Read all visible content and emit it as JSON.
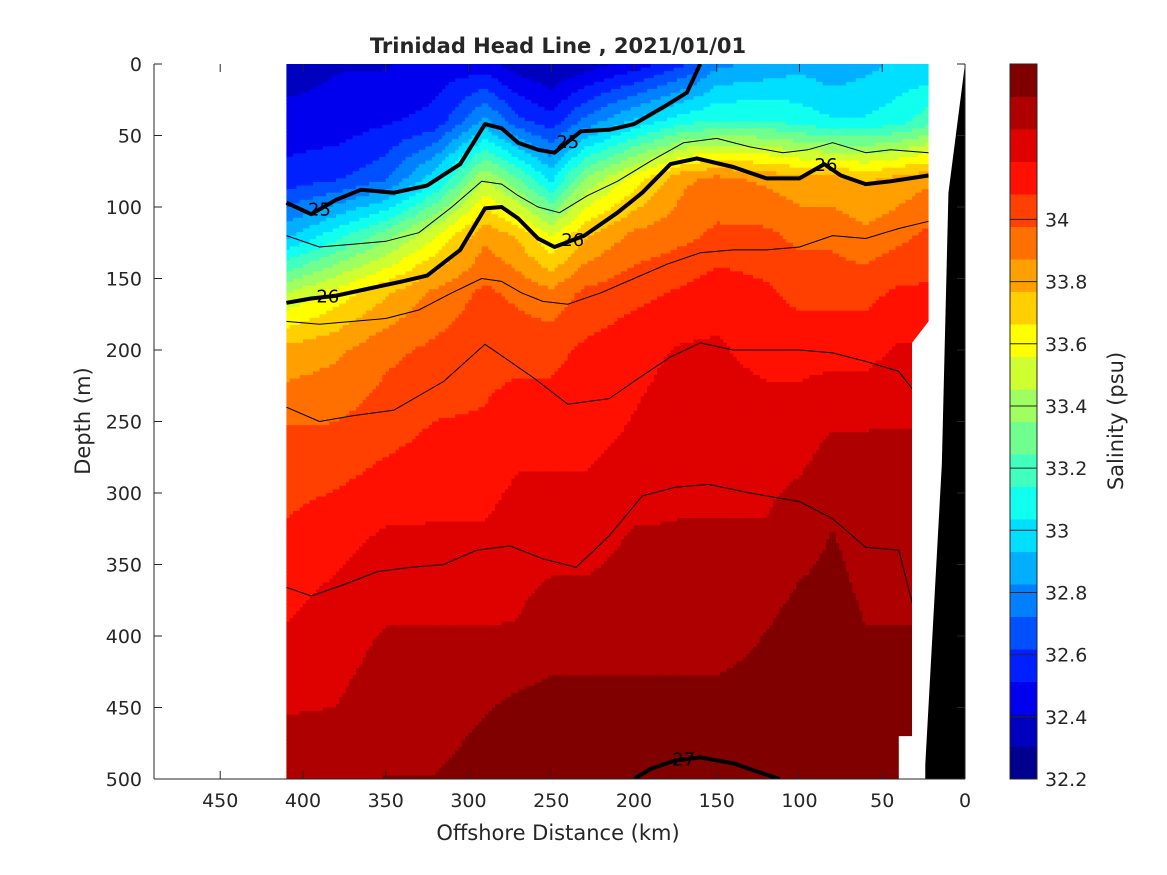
{
  "chart_data": {
    "type": "heatmap",
    "title": "Trinidad Head Line , 2021/01/01",
    "xlabel": "Offshore Distance (km)",
    "ylabel": "Depth (m)",
    "xlim": [
      490,
      0
    ],
    "ylim": [
      0,
      500
    ],
    "x_ticks": [
      "450",
      "400",
      "350",
      "300",
      "250",
      "200",
      "150",
      "100",
      "50",
      "0"
    ],
    "y_ticks": [
      "0",
      "50",
      "100",
      "150",
      "200",
      "250",
      "300",
      "350",
      "400",
      "450",
      "500"
    ],
    "colorbar": {
      "label": "Salinity (psu)",
      "range": [
        32.2,
        34.5
      ],
      "ticks": [
        "32.2",
        "32.4",
        "32.6",
        "32.8",
        "33",
        "33.2",
        "33.4",
        "33.6",
        "33.8",
        "34"
      ],
      "colors": [
        "#00008f",
        "#0000bf",
        "#0000ef",
        "#0020ff",
        "#0050ff",
        "#0080ff",
        "#00afff",
        "#00dfff",
        "#10ffef",
        "#40ffbf",
        "#70ff8f",
        "#9fff60",
        "#cfff30",
        "#ffff00",
        "#ffcf00",
        "#ff9f00",
        "#ff7000",
        "#ff4000",
        "#ff1000",
        "#df0000",
        "#af0000",
        "#800000"
      ]
    },
    "data_extent_km": [
      410,
      22
    ],
    "salinity_by_depth": {
      "x_km": [
        410,
        380,
        350,
        320,
        290,
        270,
        250,
        230,
        200,
        170,
        150,
        120,
        100,
        80,
        60,
        40,
        22
      ],
      "rows": [
        {
          "depth": 0,
          "values": [
            32.35,
            32.4,
            32.4,
            32.45,
            32.45,
            32.35,
            32.3,
            32.35,
            32.45,
            32.6,
            32.8,
            32.85,
            32.9,
            32.85,
            32.9,
            32.95,
            32.95
          ]
        },
        {
          "depth": 40,
          "values": [
            32.45,
            32.45,
            32.5,
            32.55,
            32.85,
            32.65,
            32.55,
            32.75,
            32.95,
            33.1,
            33.15,
            33.15,
            33.1,
            33.05,
            33.05,
            33.1,
            33.2
          ]
        },
        {
          "depth": 80,
          "values": [
            32.55,
            32.6,
            32.7,
            33.0,
            33.45,
            33.25,
            33.0,
            33.35,
            33.6,
            33.85,
            33.9,
            33.85,
            33.8,
            33.8,
            33.75,
            33.8,
            33.85
          ]
        },
        {
          "depth": 120,
          "values": [
            32.9,
            33.1,
            33.3,
            33.55,
            33.85,
            33.75,
            33.55,
            33.75,
            33.9,
            33.95,
            34.0,
            34.0,
            33.95,
            33.95,
            33.9,
            33.95,
            34.0
          ]
        },
        {
          "depth": 160,
          "values": [
            33.45,
            33.6,
            33.75,
            33.9,
            34.0,
            33.95,
            33.9,
            34.0,
            34.05,
            34.1,
            34.15,
            34.1,
            34.05,
            34.05,
            34.05,
            34.1,
            34.1
          ]
        },
        {
          "depth": 200,
          "values": [
            33.8,
            33.85,
            33.95,
            34.0,
            34.05,
            34.05,
            34.05,
            34.1,
            34.15,
            34.2,
            34.2,
            34.15,
            34.15,
            34.15,
            34.15,
            34.2,
            34.2
          ]
        },
        {
          "depth": 260,
          "values": [
            34.0,
            34.0,
            34.05,
            34.1,
            34.1,
            34.15,
            34.15,
            34.15,
            34.2,
            34.25,
            34.25,
            34.25,
            34.25,
            34.3,
            34.3,
            34.3,
            34.3
          ]
        },
        {
          "depth": 330,
          "values": [
            34.1,
            34.15,
            34.2,
            34.2,
            34.2,
            34.25,
            34.25,
            34.25,
            34.3,
            34.3,
            34.3,
            34.3,
            34.35,
            34.4,
            34.35,
            34.35,
            34.35
          ]
        },
        {
          "depth": 400,
          "values": [
            34.2,
            34.25,
            34.3,
            34.3,
            34.3,
            34.3,
            34.35,
            34.35,
            34.35,
            34.35,
            34.35,
            34.4,
            34.45,
            34.45,
            34.4,
            34.4,
            34.4
          ]
        },
        {
          "depth": 460,
          "values": [
            34.3,
            34.3,
            34.35,
            34.35,
            34.4,
            34.45,
            34.45,
            34.45,
            34.45,
            34.45,
            34.45,
            34.45,
            34.5,
            34.5,
            34.45,
            34.45,
            34.45
          ]
        },
        {
          "depth": 500,
          "values": [
            34.35,
            34.35,
            34.4,
            34.4,
            34.45,
            34.5,
            34.5,
            34.5,
            34.5,
            34.5,
            34.5,
            34.5,
            34.5,
            34.5,
            34.5,
            34.5,
            34.5
          ]
        }
      ]
    },
    "density_contours": [
      {
        "level": "25",
        "bold": true,
        "label_at_km": [
          390,
          240
        ],
        "points": [
          [
            410,
            97
          ],
          [
            395,
            105
          ],
          [
            380,
            95
          ],
          [
            365,
            88
          ],
          [
            345,
            90
          ],
          [
            325,
            85
          ],
          [
            305,
            70
          ],
          [
            290,
            42
          ],
          [
            280,
            45
          ],
          [
            270,
            55
          ],
          [
            258,
            60
          ],
          [
            248,
            62
          ],
          [
            232,
            47
          ],
          [
            215,
            46
          ],
          [
            200,
            42
          ],
          [
            182,
            30
          ],
          [
            168,
            20
          ],
          [
            160,
            0
          ]
        ]
      },
      {
        "level": "26",
        "bold": true,
        "label_at_km": [
          385,
          237,
          84
        ],
        "points": [
          [
            410,
            167
          ],
          [
            395,
            164
          ],
          [
            380,
            162
          ],
          [
            360,
            157
          ],
          [
            340,
            152
          ],
          [
            325,
            148
          ],
          [
            305,
            130
          ],
          [
            290,
            101
          ],
          [
            280,
            100
          ],
          [
            270,
            108
          ],
          [
            258,
            122
          ],
          [
            248,
            128
          ],
          [
            230,
            120
          ],
          [
            210,
            104
          ],
          [
            195,
            90
          ],
          [
            178,
            70
          ],
          [
            162,
            66
          ],
          [
            140,
            72
          ],
          [
            120,
            80
          ],
          [
            100,
            80
          ],
          [
            85,
            70
          ],
          [
            75,
            78
          ],
          [
            60,
            84
          ],
          [
            45,
            82
          ],
          [
            22,
            78
          ]
        ]
      },
      {
        "level": "27",
        "bold": true,
        "label_at_km": [
          170
        ],
        "points": [
          [
            200,
            500
          ],
          [
            190,
            493
          ],
          [
            175,
            487
          ],
          [
            160,
            485
          ],
          [
            140,
            489
          ],
          [
            125,
            495
          ],
          [
            112,
            500
          ]
        ]
      },
      {
        "level": "",
        "bold": false,
        "label_at_km": [],
        "points": [
          [
            410,
            240
          ],
          [
            390,
            250
          ],
          [
            370,
            246
          ],
          [
            345,
            242
          ],
          [
            315,
            222
          ],
          [
            290,
            196
          ],
          [
            280,
            204
          ],
          [
            260,
            220
          ],
          [
            240,
            238
          ],
          [
            215,
            234
          ],
          [
            195,
            218
          ],
          [
            178,
            205
          ],
          [
            160,
            195
          ],
          [
            140,
            200
          ],
          [
            120,
            200
          ],
          [
            100,
            200
          ],
          [
            80,
            202
          ],
          [
            60,
            208
          ],
          [
            40,
            215
          ],
          [
            30,
            230
          ]
        ]
      },
      {
        "level": "",
        "bold": false,
        "label_at_km": [],
        "points": [
          [
            410,
            366
          ],
          [
            395,
            372
          ],
          [
            375,
            364
          ],
          [
            355,
            355
          ],
          [
            335,
            352
          ],
          [
            315,
            350
          ],
          [
            295,
            340
          ],
          [
            275,
            337
          ],
          [
            255,
            346
          ],
          [
            235,
            352
          ],
          [
            215,
            330
          ],
          [
            195,
            302
          ],
          [
            175,
            296
          ],
          [
            155,
            294
          ],
          [
            130,
            300
          ],
          [
            100,
            306
          ],
          [
            80,
            318
          ],
          [
            60,
            338
          ],
          [
            40,
            340
          ],
          [
            30,
            385
          ]
        ]
      },
      {
        "level": "",
        "bold": false,
        "label_at_km": [],
        "points": [
          [
            410,
            120
          ],
          [
            390,
            128
          ],
          [
            370,
            126
          ],
          [
            350,
            124
          ],
          [
            330,
            118
          ],
          [
            310,
            100
          ],
          [
            292,
            82
          ],
          [
            280,
            84
          ],
          [
            270,
            92
          ],
          [
            258,
            100
          ],
          [
            245,
            104
          ],
          [
            228,
            92
          ],
          [
            210,
            82
          ],
          [
            190,
            68
          ],
          [
            170,
            55
          ],
          [
            150,
            52
          ],
          [
            130,
            58
          ],
          [
            110,
            62
          ],
          [
            95,
            60
          ],
          [
            80,
            55
          ],
          [
            60,
            62
          ],
          [
            45,
            60
          ],
          [
            22,
            62
          ]
        ]
      },
      {
        "level": "",
        "bold": false,
        "label_at_km": [],
        "points": [
          [
            410,
            180
          ],
          [
            390,
            182
          ],
          [
            370,
            180
          ],
          [
            350,
            178
          ],
          [
            330,
            172
          ],
          [
            310,
            160
          ],
          [
            292,
            150
          ],
          [
            280,
            152
          ],
          [
            268,
            160
          ],
          [
            255,
            166
          ],
          [
            240,
            168
          ],
          [
            220,
            160
          ],
          [
            200,
            150
          ],
          [
            180,
            140
          ],
          [
            160,
            132
          ],
          [
            140,
            130
          ],
          [
            120,
            130
          ],
          [
            100,
            128
          ],
          [
            80,
            120
          ],
          [
            60,
            122
          ],
          [
            40,
            115
          ],
          [
            22,
            110
          ]
        ]
      }
    ],
    "bathymetry_wedge_km": [
      [
        22,
        0
      ],
      [
        22,
        500
      ],
      [
        -5,
        500
      ],
      [
        -5,
        0
      ]
    ]
  }
}
